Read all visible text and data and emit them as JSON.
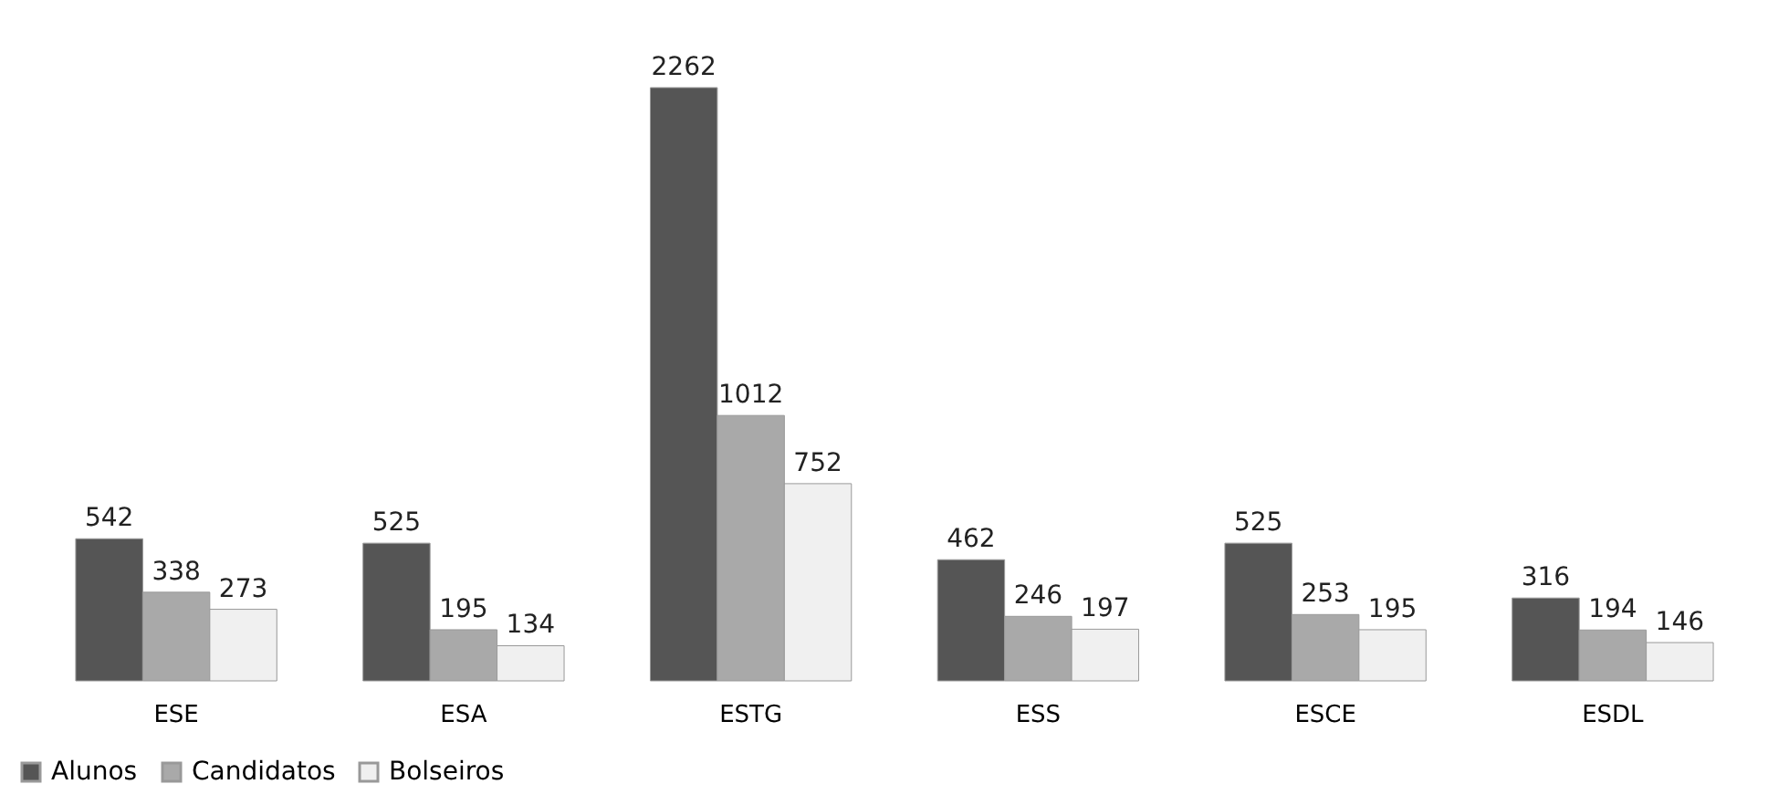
{
  "chart_data": {
    "type": "bar",
    "categories": [
      "ESE",
      "ESA",
      "ESTG",
      "ESS",
      "ESCE",
      "ESDL"
    ],
    "series": [
      {
        "name": "Alunos",
        "color": "#555555",
        "values": [
          542,
          525,
          2262,
          462,
          525,
          316
        ]
      },
      {
        "name": "Candidatos",
        "color": "#a9a9a9",
        "values": [
          338,
          195,
          1012,
          246,
          253,
          194
        ]
      },
      {
        "name": "Bolseiros",
        "color": "#f0f0f0",
        "values": [
          273,
          134,
          752,
          197,
          195,
          146
        ]
      }
    ],
    "data_labels": true,
    "legend": "bottom",
    "grid": false,
    "tick_labels": "x"
  }
}
